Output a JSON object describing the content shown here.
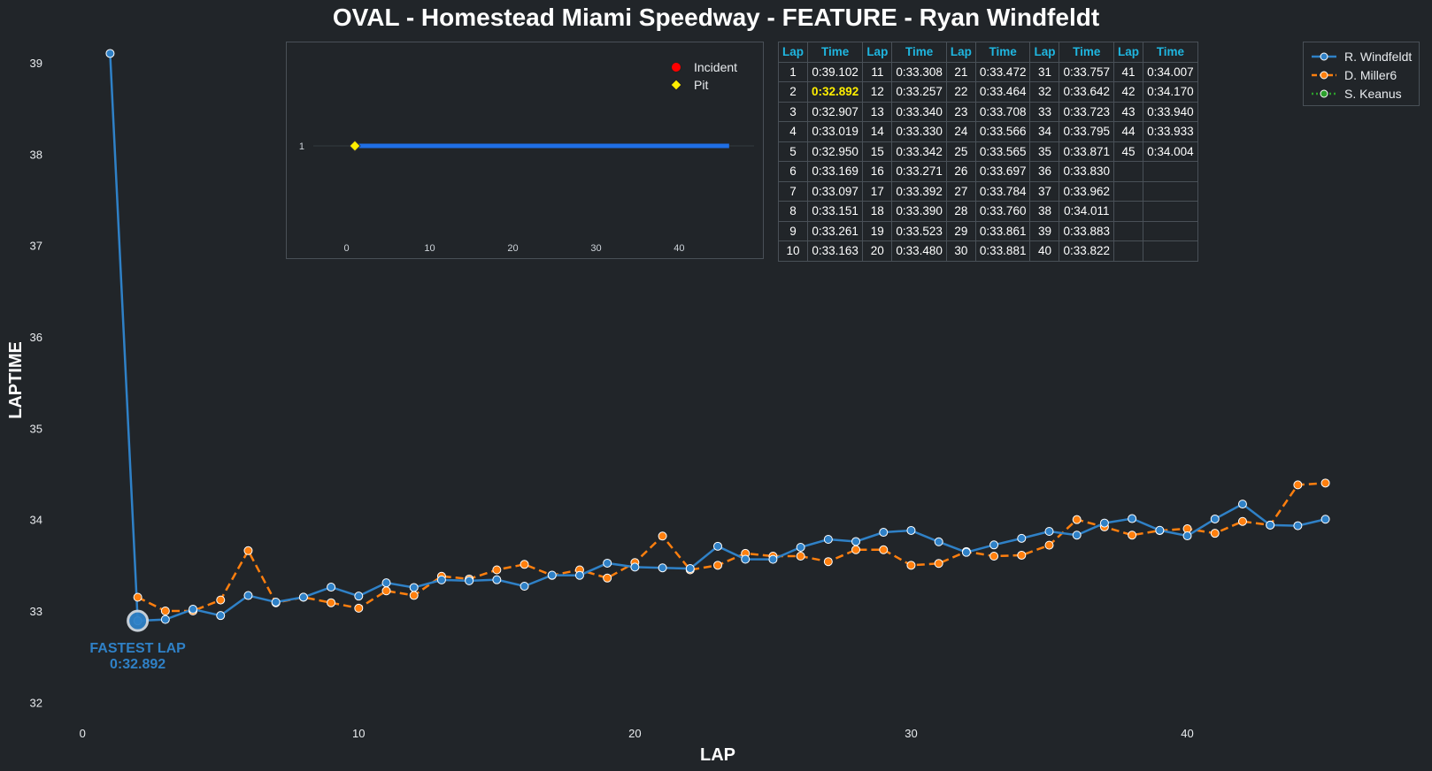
{
  "chart_data": {
    "type": "line",
    "title": "OVAL - Homestead Miami Speedway - FEATURE - Ryan Windfeldt",
    "xlabel": "LAP",
    "ylabel": "LAPTIME",
    "xlim": [
      -1,
      47
    ],
    "ylim": [
      31.8,
      39.3
    ],
    "xticks": [
      0,
      10,
      20,
      30,
      40
    ],
    "yticks": [
      32,
      33,
      34,
      35,
      36,
      37,
      38,
      39
    ],
    "grid": false,
    "legend_position": "top-right",
    "series": [
      {
        "name": "R. Windfeldt",
        "color": "#2f81c7",
        "style": "solid",
        "x": [
          1,
          2,
          3,
          4,
          5,
          6,
          7,
          8,
          9,
          10,
          11,
          12,
          13,
          14,
          15,
          16,
          17,
          18,
          19,
          20,
          21,
          22,
          23,
          24,
          25,
          26,
          27,
          28,
          29,
          30,
          31,
          32,
          33,
          34,
          35,
          36,
          37,
          38,
          39,
          40,
          41,
          42,
          43,
          44,
          45
        ],
        "values": [
          39.102,
          32.892,
          32.907,
          33.019,
          32.95,
          33.169,
          33.097,
          33.151,
          33.261,
          33.163,
          33.308,
          33.257,
          33.34,
          33.33,
          33.342,
          33.271,
          33.392,
          33.39,
          33.523,
          33.48,
          33.472,
          33.464,
          33.708,
          33.566,
          33.565,
          33.697,
          33.784,
          33.76,
          33.861,
          33.881,
          33.757,
          33.642,
          33.723,
          33.795,
          33.871,
          33.83,
          33.962,
          34.011,
          33.883,
          33.822,
          34.007,
          34.17,
          33.94,
          33.933,
          34.004
        ]
      },
      {
        "name": "D. Miller6",
        "color": "#ff7f0e",
        "style": "dashed",
        "x": [
          2,
          3,
          4,
          5,
          6,
          7,
          8,
          9,
          10,
          11,
          12,
          13,
          14,
          15,
          16,
          17,
          18,
          19,
          20,
          21,
          22,
          23,
          24,
          25,
          26,
          27,
          28,
          29,
          30,
          31,
          32,
          33,
          34,
          35,
          36,
          37,
          38,
          39,
          40,
          41,
          42,
          43,
          44,
          45
        ],
        "values": [
          33.15,
          33.0,
          33.0,
          33.12,
          33.66,
          33.09,
          33.15,
          33.09,
          33.03,
          33.22,
          33.17,
          33.38,
          33.35,
          33.45,
          33.51,
          33.39,
          33.45,
          33.36,
          33.53,
          33.82,
          33.45,
          33.5,
          33.63,
          33.6,
          33.6,
          33.54,
          33.67,
          33.67,
          33.5,
          33.52,
          33.65,
          33.6,
          33.61,
          33.72,
          34.0,
          33.92,
          33.83,
          33.88,
          33.9,
          33.85,
          33.98,
          33.94,
          34.38,
          34.4
        ]
      },
      {
        "name": "S. Keanus",
        "color": "#2ca02c",
        "style": "dotted",
        "x": [],
        "values": []
      }
    ],
    "annotation": {
      "lap": 2,
      "value": 32.892,
      "line1": "FASTEST LAP",
      "line2": "0:32.892"
    },
    "inset": {
      "type": "timeline",
      "xlim": [
        -4,
        49
      ],
      "xticks": [
        0,
        10,
        20,
        30,
        40
      ],
      "yticks": [
        1
      ],
      "bar": {
        "row": 1,
        "start": 1,
        "end": 46,
        "color": "#1f6fe5"
      },
      "pit_markers": [
        1
      ],
      "incident_markers": [],
      "legend": [
        {
          "label": "Incident",
          "color": "#ff0000",
          "marker": "circle"
        },
        {
          "label": "Pit",
          "color": "#ffee00",
          "marker": "diamond"
        }
      ]
    },
    "table": {
      "header_lap": "Lap",
      "header_time": "Time",
      "fastest_lap": 2,
      "laps": [
        [
          "1",
          "0:39.102"
        ],
        [
          "2",
          "0:32.892"
        ],
        [
          "3",
          "0:32.907"
        ],
        [
          "4",
          "0:33.019"
        ],
        [
          "5",
          "0:32.950"
        ],
        [
          "6",
          "0:33.169"
        ],
        [
          "7",
          "0:33.097"
        ],
        [
          "8",
          "0:33.151"
        ],
        [
          "9",
          "0:33.261"
        ],
        [
          "10",
          "0:33.163"
        ],
        [
          "11",
          "0:33.308"
        ],
        [
          "12",
          "0:33.257"
        ],
        [
          "13",
          "0:33.340"
        ],
        [
          "14",
          "0:33.330"
        ],
        [
          "15",
          "0:33.342"
        ],
        [
          "16",
          "0:33.271"
        ],
        [
          "17",
          "0:33.392"
        ],
        [
          "18",
          "0:33.390"
        ],
        [
          "19",
          "0:33.523"
        ],
        [
          "20",
          "0:33.480"
        ],
        [
          "21",
          "0:33.472"
        ],
        [
          "22",
          "0:33.464"
        ],
        [
          "23",
          "0:33.708"
        ],
        [
          "24",
          "0:33.566"
        ],
        [
          "25",
          "0:33.565"
        ],
        [
          "26",
          "0:33.697"
        ],
        [
          "27",
          "0:33.784"
        ],
        [
          "28",
          "0:33.760"
        ],
        [
          "29",
          "0:33.861"
        ],
        [
          "30",
          "0:33.881"
        ],
        [
          "31",
          "0:33.757"
        ],
        [
          "32",
          "0:33.642"
        ],
        [
          "33",
          "0:33.723"
        ],
        [
          "34",
          "0:33.795"
        ],
        [
          "35",
          "0:33.871"
        ],
        [
          "36",
          "0:33.830"
        ],
        [
          "37",
          "0:33.962"
        ],
        [
          "38",
          "0:34.011"
        ],
        [
          "39",
          "0:33.883"
        ],
        [
          "40",
          "0:33.822"
        ],
        [
          "41",
          "0:34.007"
        ],
        [
          "42",
          "0:34.170"
        ],
        [
          "43",
          "0:33.940"
        ],
        [
          "44",
          "0:33.933"
        ],
        [
          "45",
          "0:34.004"
        ]
      ]
    }
  }
}
